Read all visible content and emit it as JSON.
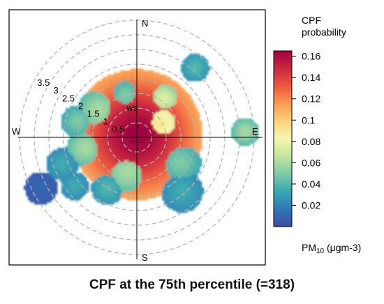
{
  "figure": {
    "caption": "CPF at the 75th percentile (=318)"
  },
  "chart_data": {
    "type": "heatmap",
    "subtype": "polar-plot",
    "compass": {
      "north": "N",
      "south": "S",
      "east": "E",
      "west": "W"
    },
    "radial_axis": {
      "label": "ws",
      "ticks": [
        0.5,
        1,
        1.5,
        2,
        2.5,
        3,
        3.5
      ],
      "tick_labels": [
        "0.5",
        "1",
        "1.5",
        "2",
        "2.5",
        "3",
        "3.5"
      ],
      "range": [
        0,
        4
      ]
    },
    "color_scale": {
      "title_line1": "CPF",
      "title_line2": "probability",
      "unit_prefix": "PM",
      "unit_sub": "10",
      "unit_suffix": " (μgm-3)",
      "min": 0,
      "max": 0.165,
      "ticks": [
        0.02,
        0.04,
        0.06,
        0.08,
        0.1,
        0.12,
        0.14,
        0.16
      ],
      "tick_labels": [
        "0.02",
        "0.04",
        "0.06",
        "0.08",
        "0.1",
        "0.12",
        "0.14",
        "0.16"
      ],
      "palette": [
        "#3f4aa3",
        "#2f78b8",
        "#3aa6b2",
        "#7ccaa4",
        "#c2e59c",
        "#f4f7ad",
        "#fdd27e",
        "#fb9a52",
        "#ea5a3e",
        "#c9273f",
        "#9e0142"
      ]
    },
    "blobs": [
      {
        "angle_deg": 0,
        "ws": 0.1,
        "spread": 1.4,
        "value": 0.165
      },
      {
        "angle_deg": 60,
        "ws": 0.9,
        "spread": 0.55,
        "value": 0.09
      },
      {
        "angle_deg": 35,
        "ws": 1.6,
        "spread": 0.35,
        "value": 0.075
      },
      {
        "angle_deg": 345,
        "ws": 1.5,
        "spread": 0.35,
        "value": 0.05
      },
      {
        "angle_deg": 305,
        "ws": 1.6,
        "spread": 0.45,
        "value": 0.06
      },
      {
        "angle_deg": 285,
        "ws": 2.1,
        "spread": 0.35,
        "value": 0.05
      },
      {
        "angle_deg": 40,
        "ws": 3.1,
        "spread": 0.3,
        "value": 0.04
      },
      {
        "angle_deg": 87,
        "ws": 3.7,
        "spread": 0.3,
        "value": 0.06
      },
      {
        "angle_deg": 120,
        "ws": 1.7,
        "spread": 0.45,
        "value": 0.05
      },
      {
        "angle_deg": 140,
        "ws": 2.4,
        "spread": 0.45,
        "value": 0.035
      },
      {
        "angle_deg": 195,
        "ws": 1.2,
        "spread": 0.5,
        "value": 0.06
      },
      {
        "angle_deg": 210,
        "ws": 2.0,
        "spread": 0.35,
        "value": 0.04
      },
      {
        "angle_deg": 232,
        "ws": 2.7,
        "spread": 0.3,
        "value": 0.035
      },
      {
        "angle_deg": 258,
        "ws": 1.8,
        "spread": 0.4,
        "value": 0.06
      },
      {
        "angle_deg": 250,
        "ws": 2.7,
        "spread": 0.35,
        "value": 0.035
      },
      {
        "angle_deg": 242,
        "ws": 3.7,
        "spread": 0.35,
        "value": 0.01
      }
    ]
  }
}
